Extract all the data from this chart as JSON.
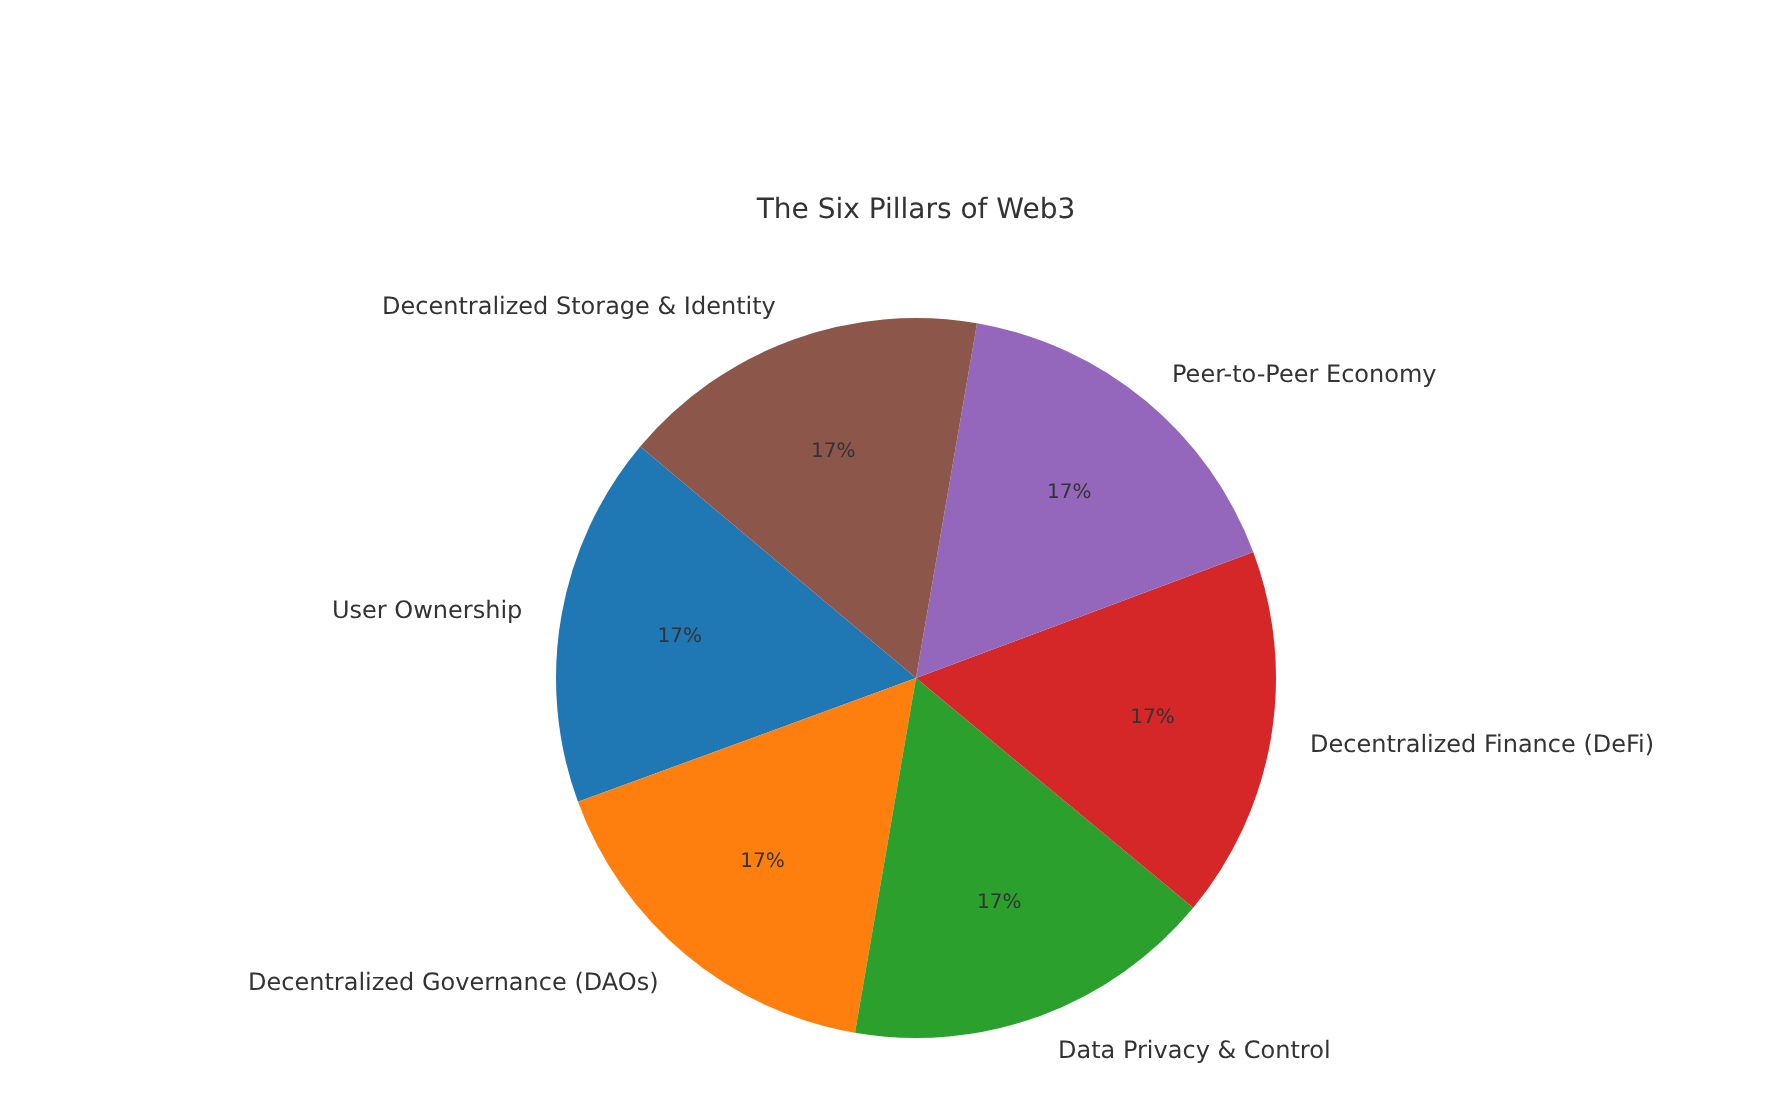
{
  "chart_data": {
    "type": "pie",
    "title": "The Six Pillars of Web3",
    "categories": [
      "User Ownership",
      "Decentralized Governance (DAOs)",
      "Data Privacy & Control",
      "Decentralized Finance (DeFi)",
      "Peer-to-Peer Economy",
      "Decentralized Storage & Identity"
    ],
    "values": [
      16.7,
      16.7,
      16.7,
      16.7,
      16.6,
      16.6
    ],
    "colors": [
      "#1f77b4",
      "#ff7f0e",
      "#2ca02c",
      "#d62728",
      "#9467bd",
      "#8c564b"
    ],
    "value_labels": [
      "17%",
      "17%",
      "17%",
      "17%",
      "17%",
      "17%"
    ],
    "legend": false
  }
}
